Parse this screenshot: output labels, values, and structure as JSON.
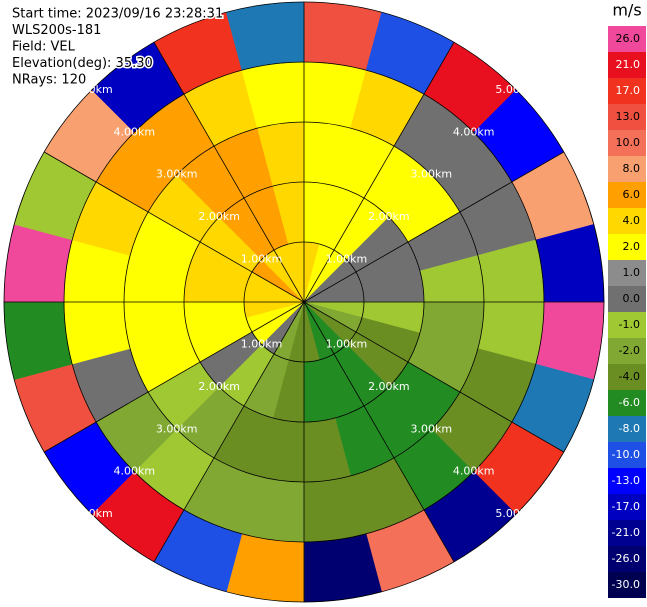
{
  "chart_data": {
    "type": "ppi",
    "info": [
      "Start time: 2023/09/16 23:28:31",
      "WLS200s-181",
      "Field: VEL",
      "Elevation(deg): 35.30",
      "NRays: 120"
    ],
    "rings": [
      {
        "value": 1,
        "label": "1.00km"
      },
      {
        "value": 2,
        "label": "2.00km"
      },
      {
        "value": 3,
        "label": "3.00km"
      },
      {
        "value": 4,
        "label": "4.00km"
      },
      {
        "value": 5,
        "label": "5.00km"
      }
    ],
    "values": [
      [
        4,
        2,
        2,
        2,
        13
      ],
      [
        2,
        2,
        2,
        4,
        -10
      ],
      [
        2,
        2,
        2,
        0,
        21
      ],
      [
        0,
        0,
        2,
        0,
        -13
      ],
      [
        0,
        0,
        0,
        0,
        8
      ],
      [
        0,
        0,
        -1,
        -1,
        -17
      ],
      [
        -1,
        -1,
        -2,
        -1,
        26
      ],
      [
        -2,
        -4,
        -2,
        -4,
        -8
      ],
      [
        -4,
        -4,
        -6,
        -4,
        17
      ],
      [
        -6,
        -6,
        -6,
        -6,
        -21
      ],
      [
        -6,
        -6,
        -6,
        -4,
        10
      ],
      [
        -4,
        -6,
        -4,
        -4,
        -26
      ],
      [
        -4,
        -4,
        -4,
        -2,
        6
      ],
      [
        -2,
        -2,
        -4,
        -2,
        -10
      ],
      [
        0,
        -1,
        -2,
        -1,
        21
      ],
      [
        2,
        0,
        -1,
        -2,
        -13
      ],
      [
        2,
        2,
        2,
        0,
        13
      ],
      [
        4,
        2,
        2,
        2,
        -6
      ],
      [
        4,
        4,
        2,
        2,
        26
      ],
      [
        4,
        4,
        2,
        4,
        -1
      ],
      [
        6,
        4,
        4,
        6,
        8
      ],
      [
        4,
        6,
        6,
        6,
        -17
      ],
      [
        4,
        6,
        6,
        4,
        17
      ],
      [
        4,
        4,
        4,
        2,
        -8
      ]
    ],
    "colorbar": {
      "label": "m/s",
      "levels": [
        {
          "value": 26,
          "label": "26.0"
        },
        {
          "value": 21,
          "label": "21.0"
        },
        {
          "value": 17,
          "label": "17.0"
        },
        {
          "value": 13,
          "label": "13.0"
        },
        {
          "value": 10,
          "label": "10.0"
        },
        {
          "value": 8,
          "label": "8.0"
        },
        {
          "value": 6,
          "label": "6.0"
        },
        {
          "value": 4,
          "label": "4.0"
        },
        {
          "value": 2,
          "label": "2.0"
        },
        {
          "value": 1,
          "label": "1.0"
        },
        {
          "value": 0,
          "label": "0.0"
        },
        {
          "value": -1,
          "label": "-1.0"
        },
        {
          "value": -2,
          "label": "-2.0"
        },
        {
          "value": -4,
          "label": "-4.0"
        },
        {
          "value": -6,
          "label": "-6.0"
        },
        {
          "value": -8,
          "label": "-8.0"
        },
        {
          "value": -10,
          "label": "-10.0"
        },
        {
          "value": -13,
          "label": "-13.0"
        },
        {
          "value": -17,
          "label": "-17.0"
        },
        {
          "value": -21,
          "label": "-21.0"
        },
        {
          "value": -26,
          "label": "-26.0"
        },
        {
          "value": -30,
          "label": "-30.0"
        }
      ],
      "colors": [
        "#f0489a",
        "#e8101e",
        "#f0321e",
        "#f05040",
        "#f47058",
        "#f8a070",
        "#ffa000",
        "#ffd800",
        "#ffff00",
        "#8c8c8c",
        "#707070",
        "#a0c832",
        "#80a832",
        "#6b8e23",
        "#228b22",
        "#1e78b4",
        "#1e50e6",
        "#0000ff",
        "#0000c0",
        "#000090",
        "#000070",
        "#000050"
      ]
    }
  }
}
